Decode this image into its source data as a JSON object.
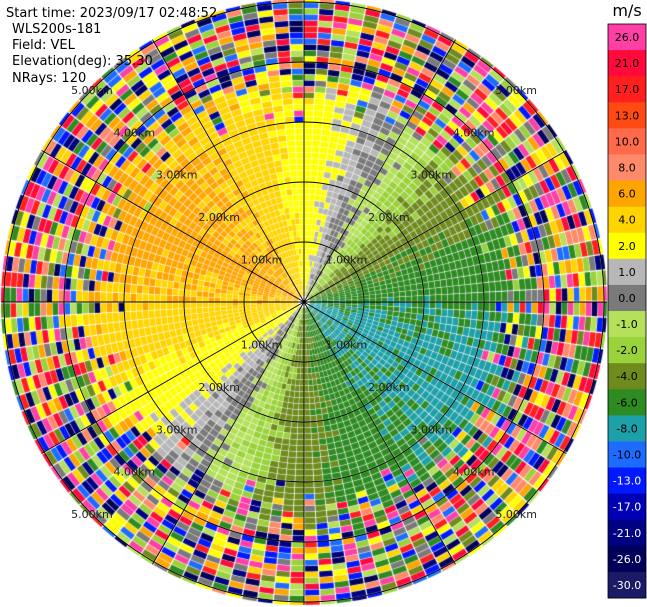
{
  "header": {
    "start_time": "Start time: 2023/09/17 02:48:52",
    "instrument": "WLS200s-181",
    "field": "Field: VEL",
    "elevation": "Elevation(deg): 35.30",
    "nrays": "NRays: 120"
  },
  "chart_data": {
    "type": "heatmap",
    "projection": "polar-ppi",
    "field": "VEL",
    "units": "m/s",
    "nrays": 120,
    "max_range_km": 5.2,
    "range_rings_km": [
      1,
      2,
      3,
      4,
      5
    ],
    "ring_labels": [
      "1.00km",
      "2.00km",
      "3.00km",
      "4.00km",
      "5.00km"
    ],
    "spokes_deg": [
      0,
      30,
      60,
      90,
      120,
      150,
      180,
      210,
      240,
      270,
      300,
      330
    ],
    "colorbar": {
      "label": "m/s",
      "bins": [
        {
          "label": "26.0",
          "color": "#ff3fa6"
        },
        {
          "label": "21.0",
          "color": "#ff0a3a"
        },
        {
          "label": "17.0",
          "color": "#ff1f1f"
        },
        {
          "label": "13.0",
          "color": "#ff4a14"
        },
        {
          "label": "10.0",
          "color": "#ff6a4a"
        },
        {
          "label": "8.0",
          "color": "#ff8a6a"
        },
        {
          "label": "6.0",
          "color": "#ffa500"
        },
        {
          "label": "4.0",
          "color": "#ffd400"
        },
        {
          "label": "2.0",
          "color": "#ffff00"
        },
        {
          "label": "1.0",
          "color": "#b7b7b7"
        },
        {
          "label": "0.0",
          "color": "#7a7a7a"
        },
        {
          "label": "-1.0",
          "color": "#b4e05a"
        },
        {
          "label": "-2.0",
          "color": "#9ad23b"
        },
        {
          "label": "-4.0",
          "color": "#6f8b1e"
        },
        {
          "label": "-6.0",
          "color": "#2e8b22"
        },
        {
          "label": "-8.0",
          "color": "#1ea0a8"
        },
        {
          "label": "-10.0",
          "color": "#1e6bff"
        },
        {
          "label": "-13.0",
          "color": "#0019ff"
        },
        {
          "label": "-17.0",
          "color": "#0000b4"
        },
        {
          "label": "-21.0",
          "color": "#000082"
        },
        {
          "label": "-26.0",
          "color": "#00005a"
        },
        {
          "label": "-30.0",
          "color": "#1a1a66"
        }
      ]
    },
    "velocity_pattern": {
      "description_free": true,
      "receding_azimuth_deg": 300,
      "approaching_azimuth_deg": 120,
      "valid_range_km": 3.6,
      "noise_colors": [
        "#ff3fa6",
        "#ff0a3a",
        "#0019ff",
        "#000082",
        "#ffff00",
        "#ffa500",
        "#9ad23b",
        "#6f8b1e",
        "#2e8b22",
        "#ff1f1f",
        "#7a7a7a",
        "#1e6bff",
        "#ff8a6a",
        "#00005a",
        "#b4e05a",
        "#ffd400"
      ]
    }
  }
}
